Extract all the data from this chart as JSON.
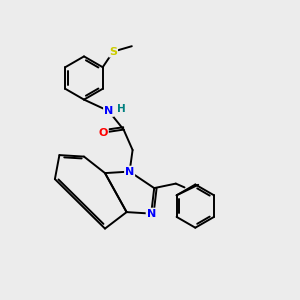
{
  "background_color": "#ececec",
  "bond_color": "#000000",
  "atom_colors": {
    "N": "#0000ff",
    "O": "#ff0000",
    "S": "#cccc00",
    "H": "#008080",
    "C": "#000000"
  },
  "lw": 1.4,
  "r_benz": 0.72
}
